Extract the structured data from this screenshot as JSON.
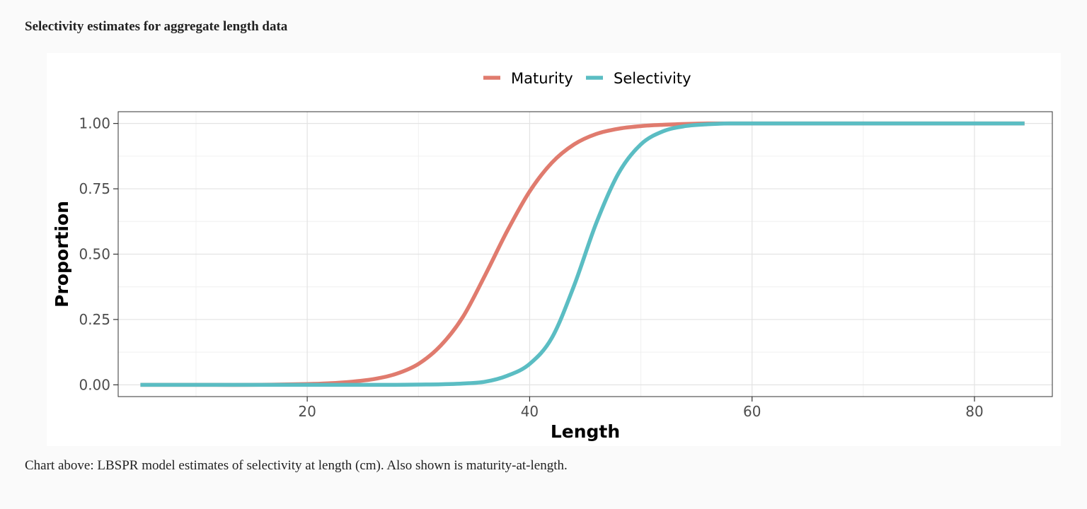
{
  "page": {
    "heading": "Selectivity estimates for aggregate length data",
    "caption": "Chart above: LBSPR model estimates of selectivity at length (cm). Also shown is maturity-at-length."
  },
  "chart_data": {
    "type": "line",
    "title": "",
    "xlabel": "Length",
    "ylabel": "Proportion",
    "xlim": [
      3,
      87
    ],
    "ylim": [
      -0.045,
      1.045
    ],
    "xticks": [
      20,
      40,
      60,
      80
    ],
    "xtick_labels": [
      "20",
      "40",
      "60",
      "80"
    ],
    "yticks": [
      0,
      0.25,
      0.5,
      0.75,
      1
    ],
    "ytick_labels": [
      "0.00",
      "0.25",
      "0.50",
      "0.75",
      "1.00"
    ],
    "grid": true,
    "legend": "top",
    "x": [
      5,
      10,
      15,
      20,
      22,
      24,
      26,
      28,
      30,
      32,
      34,
      36,
      38,
      40,
      42,
      44,
      46,
      48,
      50,
      52,
      54,
      56,
      58,
      60,
      65,
      70,
      75,
      80,
      84.5
    ],
    "series": [
      {
        "name": "Maturity",
        "color": "#e07b6e",
        "values": [
          0.0,
          0.0,
          0.0,
          0.003,
          0.006,
          0.012,
          0.022,
          0.042,
          0.08,
          0.15,
          0.26,
          0.42,
          0.59,
          0.74,
          0.85,
          0.92,
          0.96,
          0.98,
          0.99,
          0.995,
          0.998,
          1.0,
          1.0,
          1.0,
          1.0,
          1.0,
          1.0,
          1.0,
          1.0
        ]
      },
      {
        "name": "Selectivity",
        "color": "#5bbdc3",
        "values": [
          0.0,
          0.0,
          0.0,
          0.0,
          0.0,
          0.0,
          0.0,
          0.0,
          0.001,
          0.002,
          0.005,
          0.012,
          0.035,
          0.08,
          0.18,
          0.38,
          0.62,
          0.81,
          0.92,
          0.97,
          0.99,
          0.997,
          1.0,
          1.0,
          1.0,
          1.0,
          1.0,
          1.0,
          1.0
        ]
      }
    ]
  }
}
